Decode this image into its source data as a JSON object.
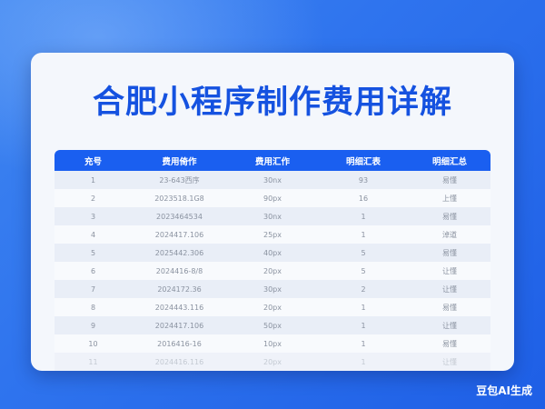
{
  "title": "合肥小程序制作费用详解",
  "table": {
    "headers": [
      "充号",
      "费用倚作",
      "费用汇作",
      "明细汇表",
      "明细汇总"
    ],
    "rows": [
      [
        "1",
        "23-643西序",
        "30nx",
        "93",
        "易懂"
      ],
      [
        "2",
        "2023518.1G8",
        "90px",
        "16",
        "上懂"
      ],
      [
        "3",
        "2023464534",
        "30nx",
        "1",
        "易懂"
      ],
      [
        "4",
        "2024417.106",
        "25px",
        "1",
        "淖道"
      ],
      [
        "5",
        "2025442.306",
        "40px",
        "5",
        "易懂"
      ],
      [
        "6",
        "2024416-8/8",
        "20px",
        "5",
        "让懂"
      ],
      [
        "7",
        "2024172.36",
        "30px",
        "2",
        "让懂"
      ],
      [
        "8",
        "2024443.116",
        "20px",
        "1",
        "易懂"
      ],
      [
        "9",
        "2024417.106",
        "50px",
        "1",
        "让懂"
      ],
      [
        "10",
        "2016416-16",
        "10px",
        "1",
        "易懂"
      ],
      [
        "11",
        "2024416.116",
        "20px",
        "1",
        "让懂"
      ]
    ]
  },
  "watermark": "豆包AI生成"
}
